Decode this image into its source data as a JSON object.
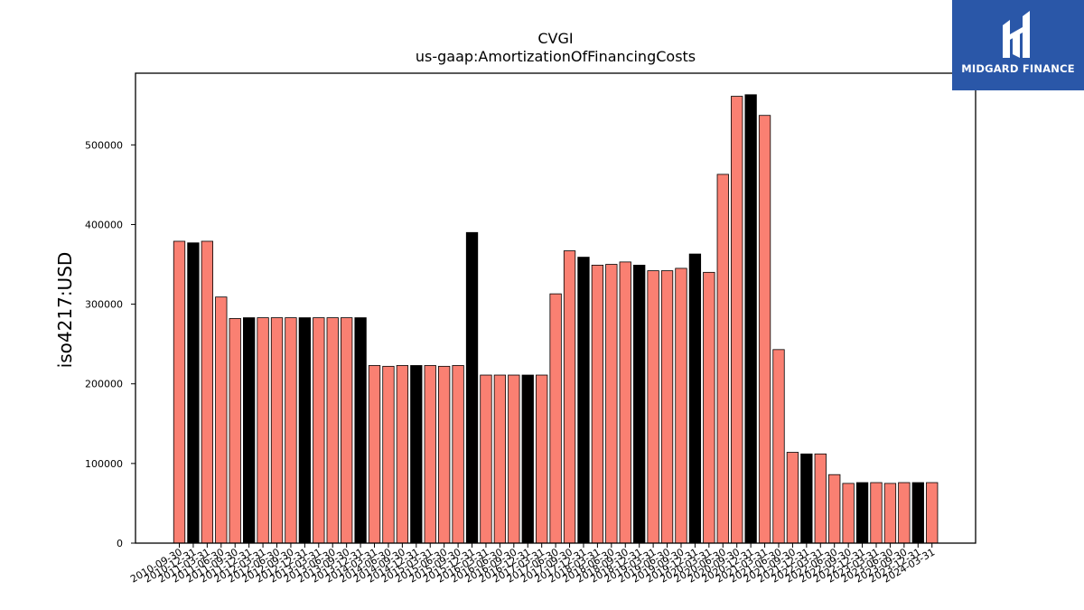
{
  "brand": {
    "name": "MIDGARD FINANCE",
    "background": "#2a57a8"
  },
  "chart_data": {
    "type": "bar",
    "title": "CVGI",
    "subtitle": "us-gaap:AmortizationOfFinancingCosts",
    "xlabel": "",
    "ylabel": "iso4217:USD",
    "ylim": [
      0,
      590000
    ],
    "yticks": [
      0,
      100000,
      200000,
      300000,
      400000,
      500000
    ],
    "grid": false,
    "colors": {
      "default": "#fa8072",
      "highlight": "#000000",
      "edge": "#000000"
    },
    "categories": [
      "2010-09-30",
      "2010-12-31",
      "2011-03-31",
      "2011-06-30",
      "2011-09-30",
      "2011-12-31",
      "2012-03-31",
      "2012-06-30",
      "2012-09-30",
      "2012-12-31",
      "2013-03-31",
      "2013-06-30",
      "2013-09-30",
      "2013-12-31",
      "2014-03-31",
      "2014-06-30",
      "2014-09-30",
      "2014-12-31",
      "2015-03-31",
      "2015-06-30",
      "2015-09-30",
      "2015-12-31",
      "2016-03-31",
      "2016-06-30",
      "2016-09-30",
      "2016-12-31",
      "2017-03-31",
      "2017-06-30",
      "2017-09-30",
      "2017-12-31",
      "2018-03-31",
      "2018-06-30",
      "2018-09-30",
      "2018-12-31",
      "2019-03-31",
      "2019-06-30",
      "2019-09-30",
      "2019-12-31",
      "2020-03-31",
      "2020-06-30",
      "2020-09-30",
      "2020-12-31",
      "2021-03-31",
      "2021-06-30",
      "2021-09-30",
      "2021-12-31",
      "2022-03-31",
      "2022-06-30",
      "2022-09-30",
      "2022-12-31",
      "2023-03-31",
      "2023-06-30",
      "2023-09-30",
      "2023-12-31",
      "2024-03-31"
    ],
    "values": [
      379000,
      377000,
      379000,
      309000,
      282000,
      283000,
      283000,
      283000,
      283000,
      283000,
      283000,
      283000,
      283000,
      283000,
      223000,
      222000,
      223000,
      223000,
      223000,
      222000,
      223000,
      390000,
      211000,
      211000,
      211000,
      211000,
      211000,
      313000,
      367000,
      359000,
      349000,
      350000,
      353000,
      349000,
      342000,
      342000,
      345000,
      363000,
      340000,
      463000,
      561000,
      563000,
      537000,
      243000,
      114000,
      112000,
      112000,
      86000,
      75000,
      76000,
      76000,
      75000,
      76000,
      76000,
      76000
    ],
    "highlight": [
      false,
      true,
      false,
      false,
      false,
      true,
      false,
      false,
      false,
      true,
      false,
      false,
      false,
      true,
      false,
      false,
      false,
      true,
      false,
      false,
      false,
      true,
      false,
      false,
      false,
      true,
      false,
      false,
      false,
      true,
      false,
      false,
      false,
      true,
      false,
      false,
      false,
      true,
      false,
      false,
      false,
      true,
      false,
      false,
      false,
      true,
      false,
      false,
      false,
      true,
      false,
      false,
      false,
      true,
      false
    ]
  }
}
